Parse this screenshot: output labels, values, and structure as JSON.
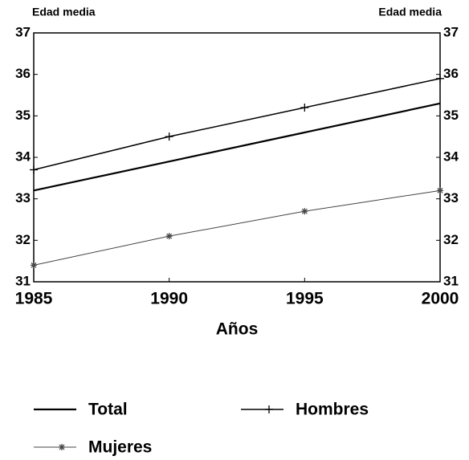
{
  "chart_data": {
    "type": "line",
    "y_axis_label": "Edad media",
    "y2_axis_label": "Edad media",
    "x_axis_label": "Años",
    "x": [
      1985,
      1990,
      1995,
      2000
    ],
    "xlim": [
      1985,
      2000
    ],
    "xticks": [
      1985,
      1990,
      1995,
      2000
    ],
    "ylim": [
      31,
      37
    ],
    "yticks": [
      31,
      32,
      33,
      34,
      35,
      36,
      37
    ],
    "y2lim": [
      31,
      37
    ],
    "y2ticks": [
      31,
      32,
      33,
      34,
      35,
      36,
      37
    ],
    "series": [
      {
        "name": "Total",
        "color": "#000000",
        "values": [
          33.2,
          33.9,
          34.6,
          35.3
        ],
        "width": 2.2,
        "marker": null
      },
      {
        "name": "Hombres",
        "color": "#000000",
        "values": [
          33.7,
          34.5,
          35.2,
          35.9
        ],
        "width": 1.5,
        "marker": "plus"
      },
      {
        "name": "Mujeres",
        "color": "#444444",
        "values": [
          31.4,
          32.1,
          32.7,
          33.2
        ],
        "width": 1,
        "marker": "star"
      }
    ]
  }
}
